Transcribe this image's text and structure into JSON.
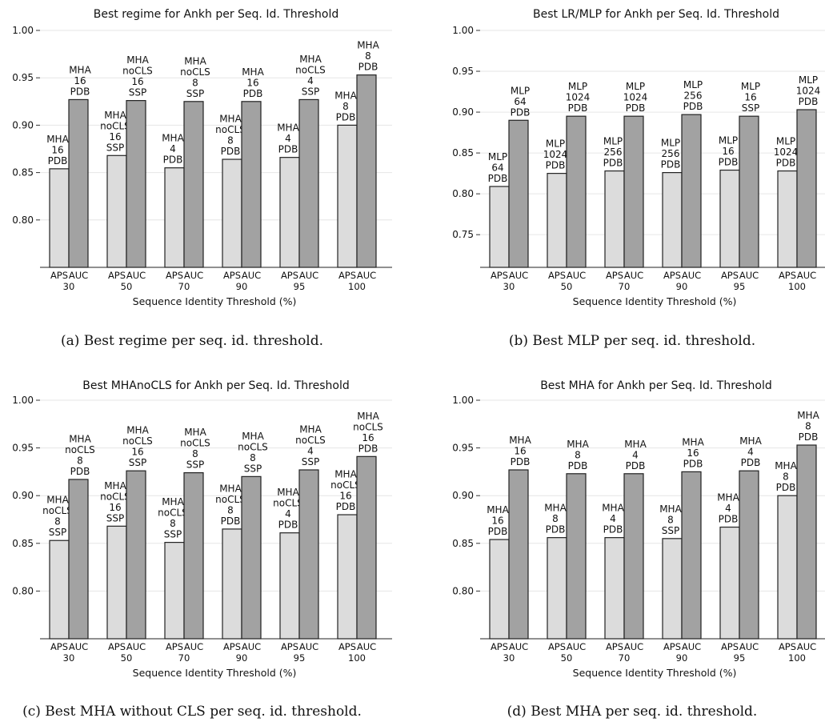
{
  "chart_data": [
    {
      "type": "bar",
      "title": "Best regime for Ankh per Seq. Id. Threshold",
      "caption": "(a) Best regime per seq. id. threshold.",
      "xlabel": "Sequence Identity Threshold (%)",
      "groups": [
        "30",
        "50",
        "70",
        "90",
        "95",
        "100"
      ],
      "metrics": [
        "APS",
        "AUC"
      ],
      "yticks": [
        "0.80",
        "0.85",
        "0.90",
        "0.95",
        "1.00"
      ],
      "ylim": [
        0.75,
        1.0
      ],
      "series": [
        {
          "name": "APS",
          "values": [
            0.854,
            0.868,
            0.855,
            0.864,
            0.866,
            0.9
          ],
          "labels": [
            [
              "MHA",
              "16",
              "PDB"
            ],
            [
              "MHA",
              "noCLS",
              "16",
              "SSP"
            ],
            [
              "MHA",
              "4",
              "PDB"
            ],
            [
              "MHA",
              "noCLS",
              "8",
              "PDB"
            ],
            [
              "MHA",
              "4",
              "PDB"
            ],
            [
              "MHA",
              "8",
              "PDB"
            ]
          ]
        },
        {
          "name": "AUC",
          "values": [
            0.927,
            0.926,
            0.925,
            0.925,
            0.927,
            0.953
          ],
          "labels": [
            [
              "MHA",
              "16",
              "PDB"
            ],
            [
              "MHA",
              "noCLS",
              "16",
              "SSP"
            ],
            [
              "MHA",
              "noCLS",
              "8",
              "SSP"
            ],
            [
              "MHA",
              "16",
              "PDB"
            ],
            [
              "MHA",
              "noCLS",
              "4",
              "SSP"
            ],
            [
              "MHA",
              "8",
              "PDB"
            ]
          ]
        }
      ]
    },
    {
      "type": "bar",
      "title": "Best LR/MLP for Ankh per Seq. Id. Threshold",
      "caption": "(b) Best MLP per seq. id. threshold.",
      "xlabel": "Sequence Identity Threshold (%)",
      "groups": [
        "30",
        "50",
        "70",
        "90",
        "95",
        "100"
      ],
      "metrics": [
        "APS",
        "AUC"
      ],
      "yticks": [
        "0.75",
        "0.80",
        "0.85",
        "0.90",
        "0.95",
        "1.00"
      ],
      "ylim": [
        0.7,
        1.0
      ],
      "series": [
        {
          "name": "APS",
          "values": [
            0.809,
            0.825,
            0.828,
            0.826,
            0.829,
            0.828
          ],
          "labels": [
            [
              "MLP",
              "64",
              "PDB"
            ],
            [
              "MLP",
              "1024",
              "PDB"
            ],
            [
              "MLP",
              "256",
              "PDB"
            ],
            [
              "MLP",
              "256",
              "PDB"
            ],
            [
              "MLP",
              "16",
              "PDB"
            ],
            [
              "MLP",
              "1024",
              "PDB"
            ]
          ]
        },
        {
          "name": "AUC",
          "values": [
            0.89,
            0.895,
            0.895,
            0.897,
            0.895,
            0.903
          ],
          "labels": [
            [
              "MLP",
              "64",
              "PDB"
            ],
            [
              "MLP",
              "1024",
              "PDB"
            ],
            [
              "MLP",
              "1024",
              "PDB"
            ],
            [
              "MLP",
              "256",
              "PDB"
            ],
            [
              "MLP",
              "16",
              "SSP"
            ],
            [
              "MLP",
              "1024",
              "PDB"
            ]
          ]
        }
      ]
    },
    {
      "type": "bar",
      "title": "Best MHAnoCLS for Ankh per Seq. Id. Threshold",
      "caption": "(c) Best MHA without CLS per seq. id. threshold.",
      "xlabel": "Sequence Identity Threshold (%)",
      "groups": [
        "30",
        "50",
        "70",
        "90",
        "95",
        "100"
      ],
      "metrics": [
        "APS",
        "AUC"
      ],
      "yticks": [
        "0.80",
        "0.85",
        "0.90",
        "0.95",
        "1.00"
      ],
      "ylim": [
        0.75,
        1.0
      ],
      "series": [
        {
          "name": "APS",
          "values": [
            0.853,
            0.868,
            0.851,
            0.865,
            0.861,
            0.88
          ],
          "labels": [
            [
              "MHA",
              "noCLS",
              "8",
              "SSP"
            ],
            [
              "MHA",
              "noCLS",
              "16",
              "SSP"
            ],
            [
              "MHA",
              "noCLS",
              "8",
              "SSP"
            ],
            [
              "MHA",
              "noCLS",
              "8",
              "PDB"
            ],
            [
              "MHA",
              "noCLS",
              "4",
              "PDB"
            ],
            [
              "MHA",
              "noCLS",
              "16",
              "PDB"
            ]
          ]
        },
        {
          "name": "AUC",
          "values": [
            0.917,
            0.926,
            0.924,
            0.92,
            0.927,
            0.941
          ],
          "labels": [
            [
              "MHA",
              "noCLS",
              "8",
              "PDB"
            ],
            [
              "MHA",
              "noCLS",
              "16",
              "SSP"
            ],
            [
              "MHA",
              "noCLS",
              "8",
              "SSP"
            ],
            [
              "MHA",
              "noCLS",
              "8",
              "SSP"
            ],
            [
              "MHA",
              "noCLS",
              "4",
              "SSP"
            ],
            [
              "MHA",
              "noCLS",
              "16",
              "PDB"
            ]
          ]
        }
      ]
    },
    {
      "type": "bar",
      "title": "Best MHA for Ankh per Seq. Id. Threshold",
      "caption": "(d) Best MHA per seq. id. threshold.",
      "xlabel": "Sequence Identity Threshold (%)",
      "groups": [
        "30",
        "50",
        "70",
        "90",
        "95",
        "100"
      ],
      "metrics": [
        "APS",
        "AUC"
      ],
      "yticks": [
        "0.80",
        "0.85",
        "0.90",
        "0.95",
        "1.00"
      ],
      "ylim": [
        0.75,
        1.0
      ],
      "series": [
        {
          "name": "APS",
          "values": [
            0.854,
            0.856,
            0.856,
            0.855,
            0.867,
            0.9
          ],
          "labels": [
            [
              "MHA",
              "16",
              "PDB"
            ],
            [
              "MHA",
              "8",
              "PDB"
            ],
            [
              "MHA",
              "4",
              "PDB"
            ],
            [
              "MHA",
              "8",
              "SSP"
            ],
            [
              "MHA",
              "4",
              "PDB"
            ],
            [
              "MHA",
              "8",
              "PDB"
            ]
          ]
        },
        {
          "name": "AUC",
          "values": [
            0.927,
            0.923,
            0.923,
            0.925,
            0.926,
            0.953
          ],
          "labels": [
            [
              "MHA",
              "16",
              "PDB"
            ],
            [
              "MHA",
              "8",
              "PDB"
            ],
            [
              "MHA",
              "4",
              "PDB"
            ],
            [
              "MHA",
              "16",
              "PDB"
            ],
            [
              "MHA",
              "4",
              "PDB"
            ],
            [
              "MHA",
              "8",
              "PDB"
            ]
          ]
        }
      ]
    }
  ],
  "colors": {
    "aps_fill": "#dcdcdc",
    "auc_fill": "#a2a2a2",
    "edge": "#222222",
    "grid": "#e6e6e6"
  }
}
